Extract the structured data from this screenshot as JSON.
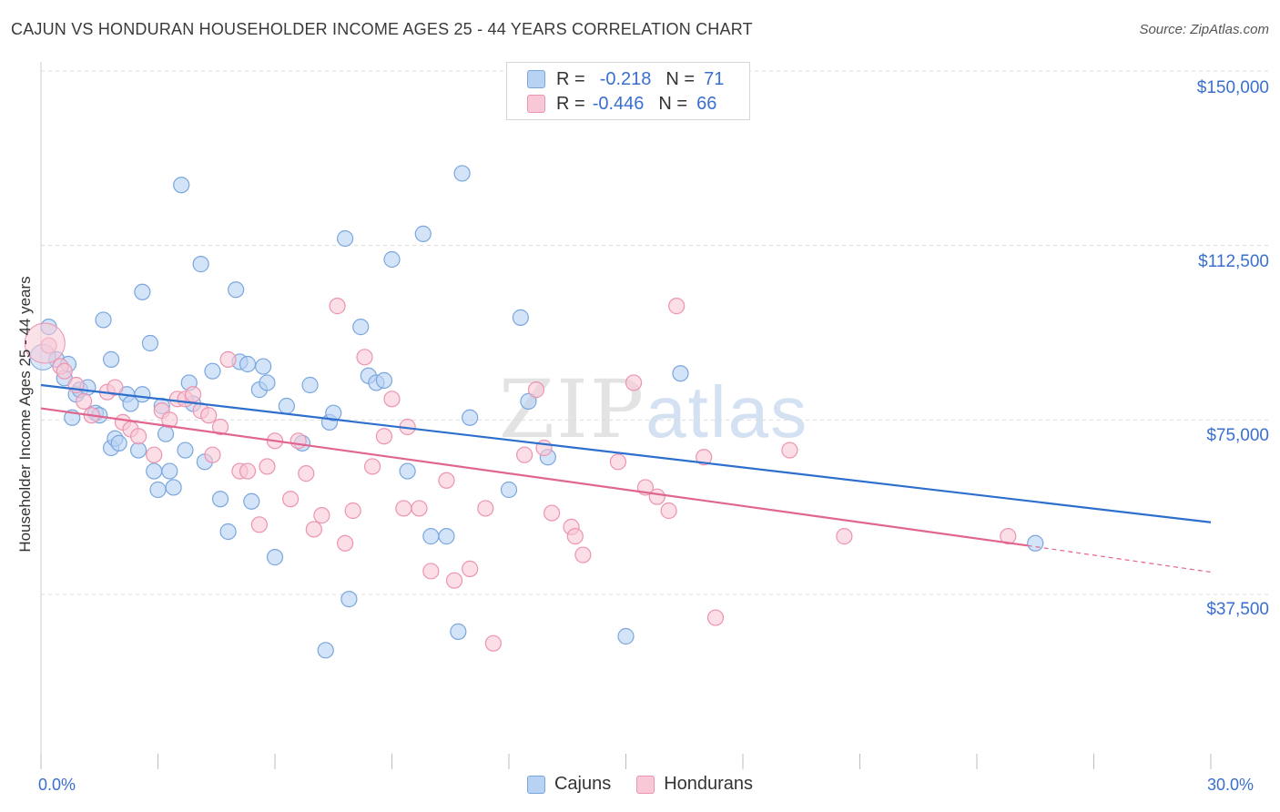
{
  "header": {
    "title": "CAJUN VS HONDURAN HOUSEHOLDER INCOME AGES 25 - 44 YEARS CORRELATION CHART",
    "source": "Source: ZipAtlas.com"
  },
  "watermark": {
    "zip": "ZIP",
    "atlas": "atlas"
  },
  "legend": {
    "cajuns": {
      "r_label": "R =",
      "r_value": "-0.218",
      "n_label": "N =",
      "n_value": "71"
    },
    "hondurans": {
      "r_label": "R =",
      "r_value": "-0.446",
      "n_label": "N =",
      "n_value": "66"
    }
  },
  "bottom_legend": {
    "cajuns": "Cajuns",
    "hondurans": "Hondurans"
  },
  "axes": {
    "y_title": "Householder Income Ages 25 - 44 years",
    "x_min_label": "0.0%",
    "x_max_label": "30.0%",
    "y_ticks": [
      "$150,000",
      "$112,500",
      "$75,000",
      "$37,500"
    ]
  },
  "colors": {
    "cajun_fill": "#b8d2f3",
    "cajun_stroke": "#7aa6de",
    "cajun_line": "#2d6fcd",
    "honduran_fill": "#f8c8d6",
    "honduran_stroke": "#ec94b0",
    "honduran_line": "#e0668f",
    "axis_text": "#3a6fcf"
  },
  "chart_data": {
    "type": "scatter",
    "xlim": [
      0,
      30
    ],
    "ylim": [
      0,
      155000
    ],
    "x_unit": "%",
    "y_tick_values": [
      150000,
      112500,
      75000,
      37500
    ],
    "grid": true,
    "series": [
      {
        "name": "Cajuns",
        "trend": {
          "x0": 0,
          "y0": 82500,
          "x1": 30,
          "y1": 53000
        },
        "points": [
          [
            0.2,
            95000
          ],
          [
            0.4,
            88000
          ],
          [
            0.6,
            84000
          ],
          [
            0.7,
            87000
          ],
          [
            0.8,
            75500
          ],
          [
            0.9,
            80500
          ],
          [
            1.0,
            81500
          ],
          [
            1.2,
            82000
          ],
          [
            1.4,
            76500
          ],
          [
            1.5,
            76000
          ],
          [
            1.6,
            96500
          ],
          [
            1.8,
            88000
          ],
          [
            1.8,
            69000
          ],
          [
            1.9,
            71000
          ],
          [
            2.0,
            70000
          ],
          [
            2.2,
            80500
          ],
          [
            2.3,
            78500
          ],
          [
            2.5,
            68500
          ],
          [
            2.6,
            80500
          ],
          [
            2.6,
            102500
          ],
          [
            2.8,
            91500
          ],
          [
            2.9,
            64000
          ],
          [
            3.0,
            60000
          ],
          [
            3.1,
            78000
          ],
          [
            3.2,
            72000
          ],
          [
            3.3,
            64000
          ],
          [
            3.4,
            60500
          ],
          [
            3.6,
            125500
          ],
          [
            3.7,
            68500
          ],
          [
            3.8,
            83000
          ],
          [
            3.9,
            78500
          ],
          [
            4.1,
            108500
          ],
          [
            4.2,
            66000
          ],
          [
            4.4,
            85500
          ],
          [
            4.6,
            58000
          ],
          [
            4.8,
            51000
          ],
          [
            5.0,
            103000
          ],
          [
            5.1,
            87500
          ],
          [
            5.3,
            87000
          ],
          [
            5.4,
            57500
          ],
          [
            5.6,
            81500
          ],
          [
            5.7,
            86500
          ],
          [
            5.8,
            83000
          ],
          [
            6.0,
            45500
          ],
          [
            6.3,
            78000
          ],
          [
            6.7,
            70000
          ],
          [
            6.9,
            82500
          ],
          [
            7.3,
            25500
          ],
          [
            7.4,
            74500
          ],
          [
            7.5,
            76500
          ],
          [
            7.8,
            114000
          ],
          [
            7.9,
            36500
          ],
          [
            8.2,
            95000
          ],
          [
            8.4,
            84500
          ],
          [
            8.6,
            83000
          ],
          [
            8.8,
            83500
          ],
          [
            9.0,
            109500
          ],
          [
            9.4,
            64000
          ],
          [
            9.8,
            115000
          ],
          [
            10.0,
            50000
          ],
          [
            10.4,
            50000
          ],
          [
            10.7,
            29500
          ],
          [
            10.8,
            128000
          ],
          [
            11.0,
            75500
          ],
          [
            12.0,
            60000
          ],
          [
            12.3,
            97000
          ],
          [
            12.5,
            79000
          ],
          [
            13.0,
            67000
          ],
          [
            15.0,
            28500
          ],
          [
            16.4,
            85000
          ],
          [
            25.5,
            48500
          ]
        ]
      },
      {
        "name": "Hondurans",
        "trend": {
          "x0": 0,
          "y0": 77500,
          "x1": 25.3,
          "y1": 48000
        },
        "trend_ext": {
          "x0": 25.3,
          "y0": 48000,
          "x1": 30,
          "y1": 42300
        },
        "points": [
          [
            0.2,
            91000
          ],
          [
            0.5,
            86500
          ],
          [
            0.6,
            85500
          ],
          [
            0.9,
            82500
          ],
          [
            1.1,
            79000
          ],
          [
            1.3,
            76000
          ],
          [
            1.7,
            81000
          ],
          [
            1.9,
            82000
          ],
          [
            2.1,
            74500
          ],
          [
            2.3,
            73000
          ],
          [
            2.5,
            71500
          ],
          [
            2.9,
            67500
          ],
          [
            3.1,
            77000
          ],
          [
            3.3,
            75000
          ],
          [
            3.5,
            79500
          ],
          [
            3.7,
            79500
          ],
          [
            3.9,
            80500
          ],
          [
            4.1,
            77000
          ],
          [
            4.3,
            76000
          ],
          [
            4.4,
            67500
          ],
          [
            4.6,
            73500
          ],
          [
            4.8,
            88000
          ],
          [
            5.1,
            64000
          ],
          [
            5.3,
            64000
          ],
          [
            5.6,
            52500
          ],
          [
            5.8,
            65000
          ],
          [
            6.0,
            70500
          ],
          [
            6.4,
            58000
          ],
          [
            6.6,
            70500
          ],
          [
            6.8,
            63500
          ],
          [
            7.0,
            51500
          ],
          [
            7.2,
            54500
          ],
          [
            7.6,
            99500
          ],
          [
            7.8,
            48500
          ],
          [
            8.0,
            55500
          ],
          [
            8.3,
            88500
          ],
          [
            8.5,
            65000
          ],
          [
            8.8,
            71500
          ],
          [
            9.0,
            79500
          ],
          [
            9.3,
            56000
          ],
          [
            9.4,
            73500
          ],
          [
            9.7,
            56000
          ],
          [
            10.0,
            42500
          ],
          [
            10.4,
            62000
          ],
          [
            10.6,
            40500
          ],
          [
            11.0,
            43000
          ],
          [
            11.4,
            56000
          ],
          [
            11.6,
            27000
          ],
          [
            12.4,
            67500
          ],
          [
            12.7,
            81500
          ],
          [
            12.9,
            69000
          ],
          [
            13.1,
            55000
          ],
          [
            13.6,
            52000
          ],
          [
            13.7,
            50000
          ],
          [
            13.9,
            46000
          ],
          [
            14.8,
            66000
          ],
          [
            15.2,
            83000
          ],
          [
            15.5,
            60500
          ],
          [
            15.8,
            58500
          ],
          [
            16.1,
            55500
          ],
          [
            16.3,
            99500
          ],
          [
            17.0,
            67000
          ],
          [
            17.3,
            32500
          ],
          [
            19.2,
            68500
          ],
          [
            20.6,
            50000
          ],
          [
            24.8,
            50000
          ]
        ]
      }
    ]
  }
}
